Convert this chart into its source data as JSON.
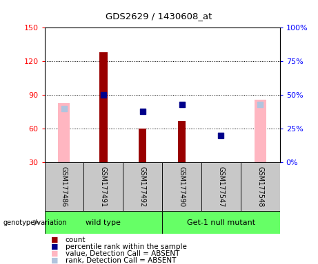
{
  "title": "GDS2629 / 1430608_at",
  "samples": [
    "GSM177486",
    "GSM177491",
    "GSM177492",
    "GSM177490",
    "GSM177547",
    "GSM177548"
  ],
  "ylim_left": [
    30,
    150
  ],
  "ylim_right": [
    0,
    100
  ],
  "yticks_left": [
    30,
    60,
    90,
    120,
    150
  ],
  "yticks_right": [
    0,
    25,
    50,
    75,
    100
  ],
  "red_bars_indices": [
    1,
    2,
    3,
    4
  ],
  "red_bars_values": [
    128,
    60,
    67,
    30
  ],
  "blue_sq_indices": [
    1,
    2,
    3,
    4
  ],
  "blue_sq_pct": [
    50,
    38,
    43,
    20
  ],
  "pink_bars_indices": [
    0,
    5
  ],
  "pink_bars_values": [
    83,
    86
  ],
  "lightblue_sq_indices": [
    0,
    5
  ],
  "lightblue_sq_pct": [
    40,
    43
  ],
  "red_bar_color": "#990000",
  "blue_sq_color": "#00008B",
  "pink_bar_color": "#FFB6C1",
  "lightblue_sq_color": "#B0C4DE",
  "wildtype_label": "wild type",
  "mutant_label": "Get-1 null mutant",
  "group_color": "#66FF66",
  "gray_color": "#C8C8C8",
  "legend_items": [
    {
      "color": "#990000",
      "label": "count"
    },
    {
      "color": "#00008B",
      "label": "percentile rank within the sample"
    },
    {
      "color": "#FFB6C1",
      "label": "value, Detection Call = ABSENT"
    },
    {
      "color": "#B0C4DE",
      "label": "rank, Detection Call = ABSENT"
    }
  ]
}
